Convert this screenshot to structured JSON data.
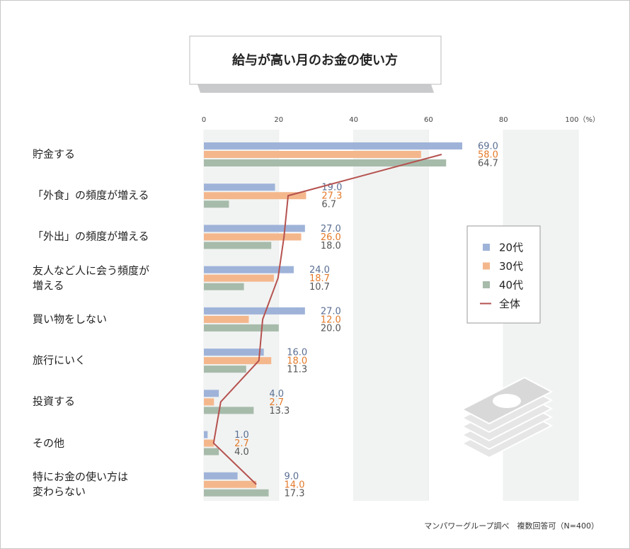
{
  "chart_data": {
    "type": "bar",
    "orientation": "horizontal",
    "title": "給与が高い月のお金の使い方",
    "source": "マンパワーグループ調べ　複数回答可（N=400）",
    "categories": [
      "貯金する",
      "「外食」の頻度が増える",
      "「外出」の頻度が増える",
      "友人など人に会う頻度が\n増える",
      "買い物をしない",
      "旅行にいく",
      "投資する",
      "その他",
      "特にお金の使い方は\n変わらない"
    ],
    "xlim": [
      0,
      100
    ],
    "xticks": [
      0,
      20,
      40,
      60,
      80,
      {
        "value": 100,
        "label": "100（%）"
      }
    ],
    "series": [
      {
        "name": "20代",
        "color": "#9fb3d9",
        "label_color": "#5b6f93",
        "values": [
          69,
          19,
          27,
          24,
          27,
          16,
          4,
          1,
          9
        ],
        "value_labels": [
          "69.0",
          "19.0",
          "27.0",
          "24.0",
          "27.0",
          "16.0",
          "4.0",
          "1.0",
          "9.0"
        ]
      },
      {
        "name": "30代",
        "color": "#f4b78c",
        "label_color": "#e47a2a",
        "values": [
          58,
          27.3,
          26,
          18.7,
          12,
          18,
          2.7,
          2.7,
          14
        ],
        "value_labels": [
          "58.0",
          "27.3",
          "26.0",
          "18.7",
          "12.0",
          "18.0",
          "2.7",
          "2.7",
          "14.0"
        ]
      },
      {
        "name": "40代",
        "color": "#a7bbab",
        "label_color": "#555555",
        "values": [
          64.7,
          6.7,
          18,
          10.7,
          20,
          11.3,
          13.3,
          4,
          17.3
        ],
        "value_labels": [
          "64.7",
          "6.7",
          "18.0",
          "10.7",
          "20.0",
          "11.3",
          "13.3",
          "4.0",
          "17.3"
        ]
      },
      {
        "name": "全体",
        "type": "line",
        "color": "#b5524f",
        "values": [
          63.5,
          22.5,
          21.4,
          19.8,
          15.7,
          14.7,
          4.5,
          2.6,
          14.0
        ]
      }
    ]
  }
}
